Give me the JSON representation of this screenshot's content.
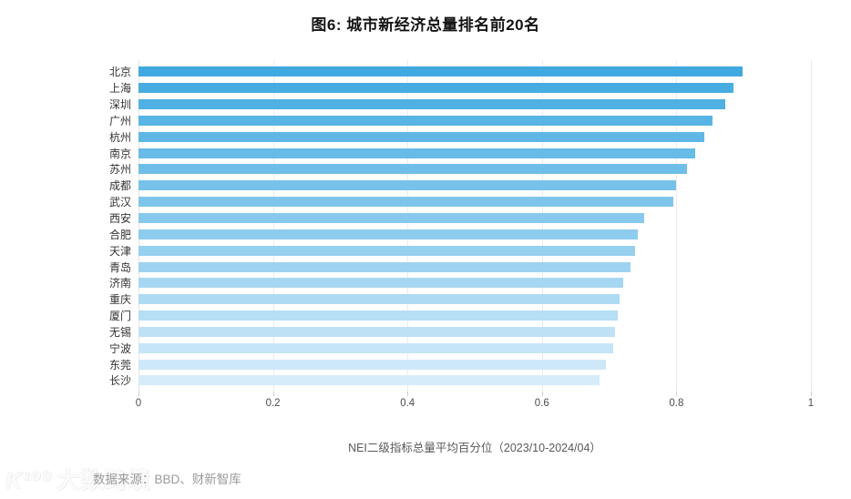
{
  "chart_data": {
    "type": "bar",
    "orientation": "horizontal",
    "title": "图6: 城市新经济总量排名前20名",
    "categories": [
      "北京",
      "上海",
      "深圳",
      "广州",
      "杭州",
      "南京",
      "苏州",
      "成都",
      "武汉",
      "西安",
      "合肥",
      "天津",
      "青岛",
      "济南",
      "重庆",
      "厦门",
      "无锡",
      "宁波",
      "东莞",
      "长沙"
    ],
    "values": [
      0.898,
      0.885,
      0.873,
      0.854,
      0.842,
      0.828,
      0.816,
      0.799,
      0.796,
      0.752,
      0.742,
      0.739,
      0.732,
      0.721,
      0.716,
      0.713,
      0.709,
      0.706,
      0.695,
      0.686
    ],
    "xlabel": "NEI二级指标总量平均百分位（2023/10-2024/04）",
    "ylabel": "",
    "xlim": [
      0,
      1
    ],
    "x_ticks": [
      0,
      0.2,
      0.4,
      0.6,
      0.8,
      1
    ],
    "x_tick_labels": [
      "0",
      "0.2",
      "0.4",
      "0.6",
      "0.8",
      "1"
    ],
    "grid": true,
    "legend": false,
    "bar_color_top": "#3FA9E0",
    "bar_color_bottom": "#D6ECFA"
  },
  "footer": {
    "watermark_logo": "K¹⁰⁰",
    "watermark_text": "大数跨境",
    "source": "数据来源：BBD、财新智库"
  },
  "colors": {
    "background": "#ffffff",
    "title_text": "#151515",
    "category_label": "#333333",
    "tick_label": "#4d4d4d",
    "caption_text": "#595959",
    "gridline": "#ececec",
    "source_text": "#9b9b9b"
  }
}
